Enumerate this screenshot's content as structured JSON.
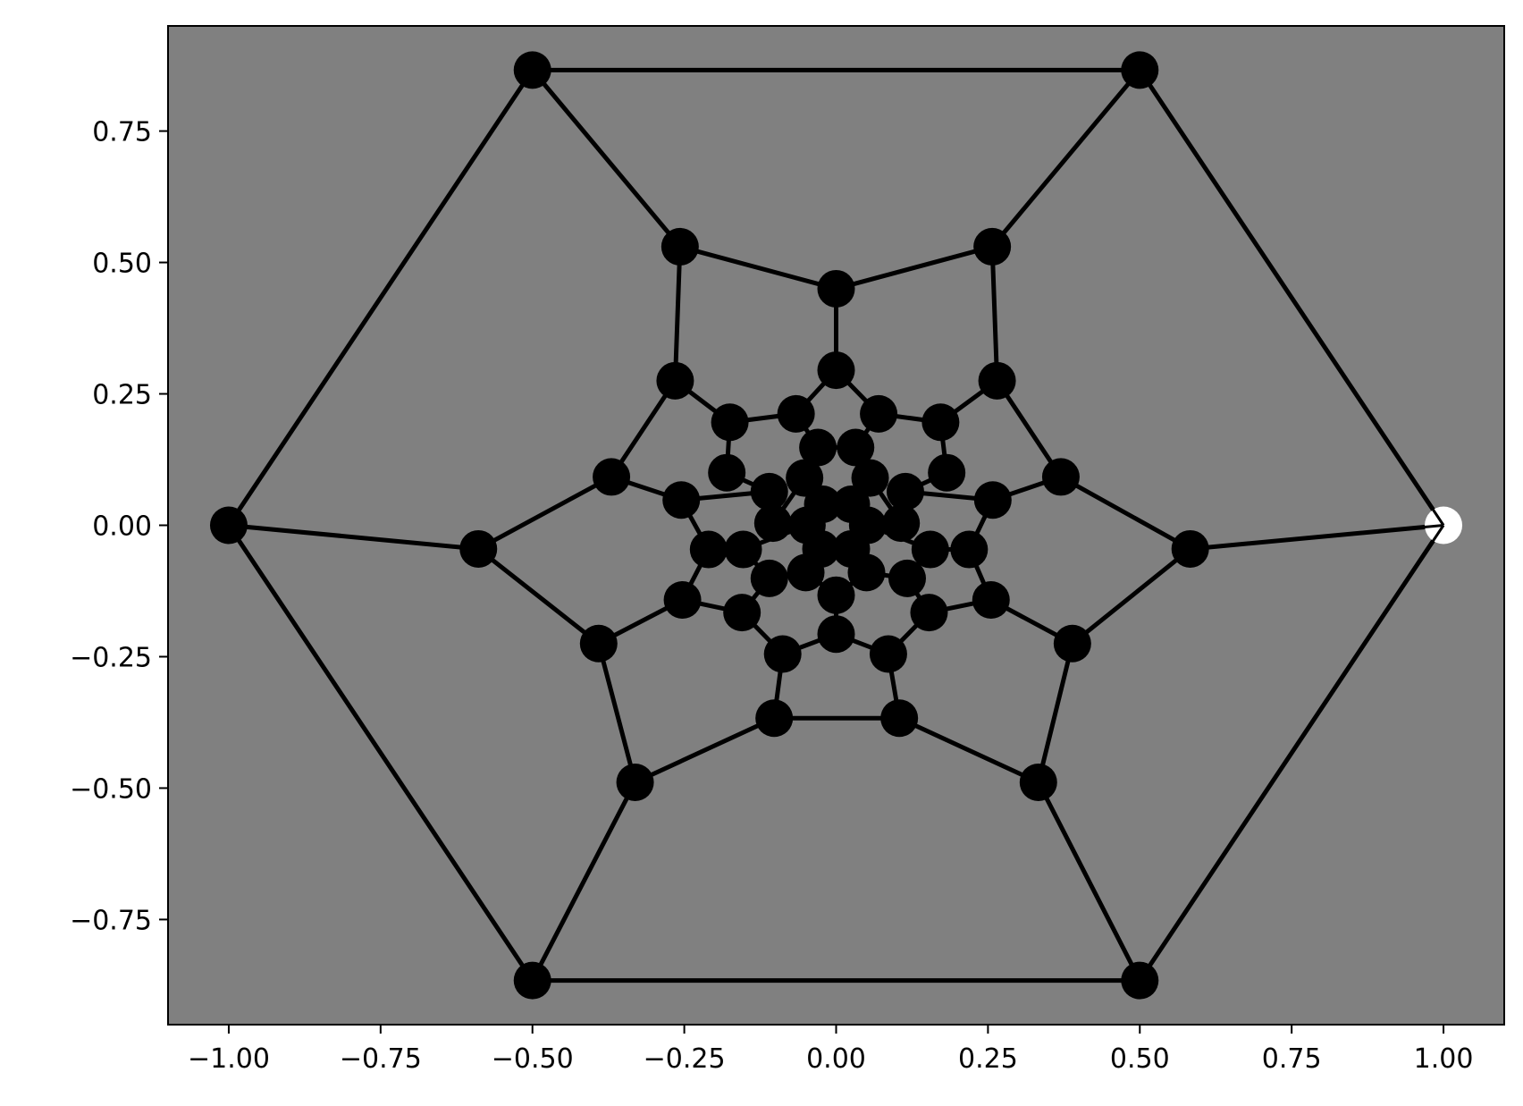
{
  "chart_data": {
    "type": "scatter",
    "title": "",
    "xlabel": "",
    "ylabel": "",
    "xlim": [
      -1.1,
      1.1
    ],
    "ylim": [
      -0.95,
      0.95
    ],
    "grid": false,
    "x_ticks": [
      -1.0,
      -0.75,
      -0.5,
      -0.25,
      0.0,
      0.25,
      0.5,
      0.75,
      1.0
    ],
    "x_tick_labels": [
      "−1.00",
      "−0.75",
      "−0.50",
      "−0.25",
      "0.00",
      "0.25",
      "0.50",
      "0.75",
      "1.00"
    ],
    "y_ticks": [
      0.75,
      0.5,
      0.25,
      0.0,
      -0.25,
      -0.5,
      -0.75
    ],
    "y_tick_labels": [
      "0.75",
      "0.50",
      "0.25",
      "0.00",
      "−0.25",
      "−0.50",
      "−0.75"
    ],
    "colors": {
      "plot_background": "#808080",
      "node": "#000000",
      "edge": "#000000",
      "highlight_node": "#ffffff"
    },
    "nodes": [
      {
        "x": 1.0,
        "y": 0.0
      },
      {
        "x": 0.5,
        "y": 0.866
      },
      {
        "x": -0.5,
        "y": 0.866
      },
      {
        "x": -1.0,
        "y": 0.0
      },
      {
        "x": -0.5,
        "y": -0.866
      },
      {
        "x": 0.5,
        "y": -0.866
      },
      {
        "x": 0.583,
        "y": -0.045
      },
      {
        "x": 0.257,
        "y": 0.53
      },
      {
        "x": -0.257,
        "y": 0.53
      },
      {
        "x": -0.589,
        "y": -0.045
      },
      {
        "x": -0.331,
        "y": -0.489
      },
      {
        "x": 0.333,
        "y": -0.489
      },
      {
        "x": 0.0,
        "y": 0.45
      },
      {
        "x": 0.389,
        "y": -0.225
      },
      {
        "x": -0.391,
        "y": -0.225
      },
      {
        "x": 0.0,
        "y": 0.295
      },
      {
        "x": 0.265,
        "y": 0.275
      },
      {
        "x": -0.265,
        "y": 0.275
      },
      {
        "x": -0.37,
        "y": 0.092
      },
      {
        "x": 0.37,
        "y": 0.092
      },
      {
        "x": -0.102,
        "y": -0.367
      },
      {
        "x": 0.104,
        "y": -0.367
      },
      {
        "x": -0.253,
        "y": -0.142
      },
      {
        "x": 0.255,
        "y": -0.142
      },
      {
        "x": -0.066,
        "y": 0.212
      },
      {
        "x": 0.07,
        "y": 0.212
      },
      {
        "x": -0.175,
        "y": 0.196
      },
      {
        "x": 0.172,
        "y": 0.196
      },
      {
        "x": -0.255,
        "y": 0.048
      },
      {
        "x": 0.258,
        "y": 0.048
      },
      {
        "x": -0.21,
        "y": -0.046
      },
      {
        "x": 0.219,
        "y": -0.046
      },
      {
        "x": -0.088,
        "y": -0.245
      },
      {
        "x": 0.086,
        "y": -0.245
      },
      {
        "x": 0.0,
        "y": -0.207
      },
      {
        "x": -0.155,
        "y": -0.166
      },
      {
        "x": 0.153,
        "y": -0.166
      },
      {
        "x": -0.18,
        "y": 0.1
      },
      {
        "x": 0.182,
        "y": 0.1
      },
      {
        "x": -0.03,
        "y": 0.148
      },
      {
        "x": 0.032,
        "y": 0.148
      },
      {
        "x": -0.11,
        "y": 0.064
      },
      {
        "x": 0.114,
        "y": 0.064
      },
      {
        "x": -0.052,
        "y": 0.09
      },
      {
        "x": 0.056,
        "y": 0.09
      },
      {
        "x": -0.104,
        "y": 0.004
      },
      {
        "x": 0.107,
        "y": 0.004
      },
      {
        "x": -0.153,
        "y": -0.046
      },
      {
        "x": 0.155,
        "y": -0.046
      },
      {
        "x": -0.11,
        "y": -0.101
      },
      {
        "x": 0.117,
        "y": -0.101
      },
      {
        "x": 0.0,
        "y": -0.133
      },
      {
        "x": -0.05,
        "y": -0.09
      },
      {
        "x": 0.05,
        "y": -0.09
      },
      {
        "x": -0.022,
        "y": 0.04
      },
      {
        "x": 0.025,
        "y": 0.04
      },
      {
        "x": -0.048,
        "y": 0.0
      },
      {
        "x": 0.052,
        "y": 0.0
      },
      {
        "x": -0.025,
        "y": -0.045
      },
      {
        "x": 0.025,
        "y": -0.045
      }
    ],
    "edges": [
      [
        0,
        1
      ],
      [
        1,
        2
      ],
      [
        2,
        3
      ],
      [
        3,
        4
      ],
      [
        4,
        5
      ],
      [
        5,
        0
      ],
      [
        0,
        6
      ],
      [
        1,
        7
      ],
      [
        2,
        8
      ],
      [
        3,
        9
      ],
      [
        4,
        10
      ],
      [
        5,
        11
      ],
      [
        7,
        12
      ],
      [
        8,
        12
      ],
      [
        12,
        15
      ],
      [
        7,
        16
      ],
      [
        8,
        17
      ],
      [
        6,
        19
      ],
      [
        6,
        13
      ],
      [
        9,
        18
      ],
      [
        9,
        14
      ],
      [
        10,
        14
      ],
      [
        10,
        20
      ],
      [
        11,
        13
      ],
      [
        11,
        21
      ],
      [
        20,
        21
      ],
      [
        17,
        18
      ],
      [
        16,
        19
      ],
      [
        14,
        22
      ],
      [
        13,
        23
      ],
      [
        15,
        24
      ],
      [
        15,
        25
      ],
      [
        17,
        26
      ],
      [
        16,
        27
      ],
      [
        24,
        26
      ],
      [
        25,
        27
      ],
      [
        18,
        28
      ],
      [
        19,
        29
      ],
      [
        22,
        35
      ],
      [
        23,
        36
      ],
      [
        20,
        32
      ],
      [
        21,
        33
      ],
      [
        32,
        34
      ],
      [
        33,
        34
      ],
      [
        22,
        30
      ],
      [
        23,
        31
      ],
      [
        28,
        30
      ],
      [
        29,
        31
      ],
      [
        26,
        37
      ],
      [
        27,
        38
      ],
      [
        28,
        41
      ],
      [
        29,
        42
      ],
      [
        37,
        41
      ],
      [
        38,
        42
      ],
      [
        24,
        39
      ],
      [
        25,
        40
      ],
      [
        39,
        43
      ],
      [
        40,
        44
      ],
      [
        35,
        49
      ],
      [
        36,
        50
      ],
      [
        32,
        35
      ],
      [
        33,
        36
      ],
      [
        30,
        47
      ],
      [
        31,
        48
      ],
      [
        34,
        51
      ],
      [
        51,
        52
      ],
      [
        51,
        53
      ],
      [
        41,
        45
      ],
      [
        42,
        46
      ],
      [
        43,
        54
      ],
      [
        44,
        55
      ],
      [
        45,
        56
      ],
      [
        46,
        57
      ],
      [
        47,
        49
      ],
      [
        48,
        50
      ],
      [
        49,
        52
      ],
      [
        50,
        53
      ],
      [
        52,
        58
      ],
      [
        53,
        59
      ],
      [
        54,
        56
      ],
      [
        55,
        57
      ],
      [
        56,
        58
      ],
      [
        57,
        59
      ],
      [
        54,
        55
      ],
      [
        58,
        59
      ],
      [
        39,
        40
      ],
      [
        43,
        45
      ],
      [
        44,
        46
      ],
      [
        47,
        56
      ],
      [
        48,
        57
      ]
    ],
    "highlighted_nodes": [
      0
    ]
  }
}
